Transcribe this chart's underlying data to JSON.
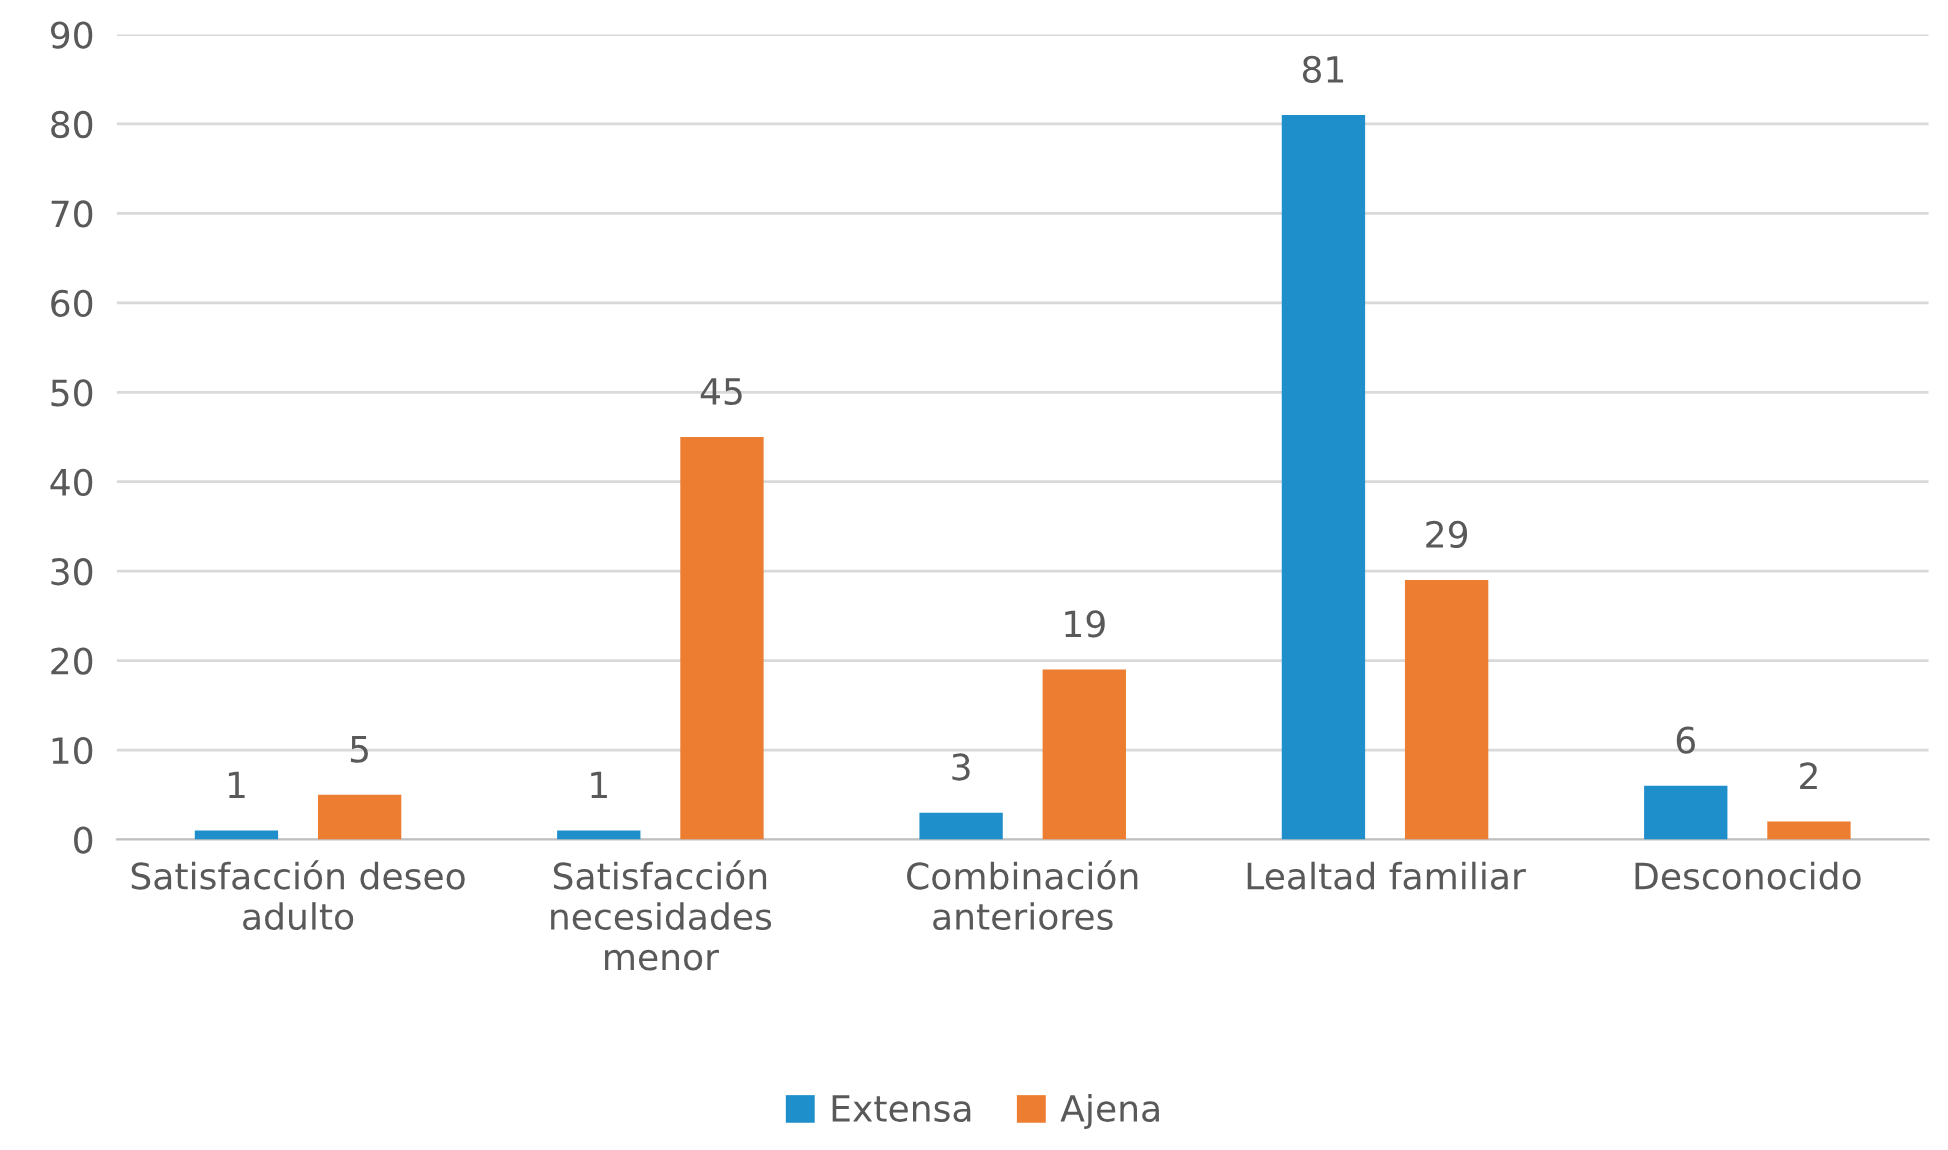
{
  "chart_data": {
    "type": "bar",
    "categories": [
      "Satisfacción deseo\nadulto",
      "Satisfacción\nnecesidades\nmenor",
      "Combinación\nanteriores",
      "Lealtad familiar",
      "Desconocido"
    ],
    "series": [
      {
        "name": "Extensa",
        "color": "#1f8fcb",
        "values": [
          1,
          1,
          3,
          81,
          6
        ]
      },
      {
        "name": "Ajena",
        "color": "#ed7d31",
        "values": [
          5,
          45,
          19,
          29,
          2
        ]
      }
    ],
    "ylim": [
      0,
      90
    ],
    "yticks": [
      0,
      10,
      20,
      30,
      40,
      50,
      60,
      70,
      80,
      90
    ],
    "grid": "y",
    "legend": "bottom",
    "data_labels": true
  }
}
